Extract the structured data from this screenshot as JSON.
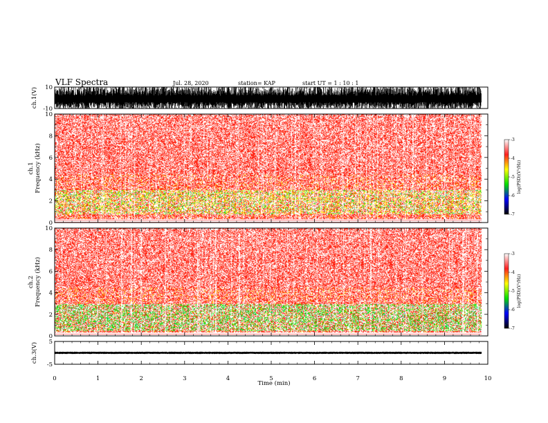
{
  "header": {
    "title": "VLF Spectra",
    "date": "Jul. 28, 2020",
    "station": "station= KAP",
    "start": "start UT =  1 : 10 : 1"
  },
  "colorbar": {
    "label": "log(PSD)(V²/Hz)",
    "ticks": [
      "-3",
      "-4",
      "-5",
      "-6",
      "-7"
    ],
    "colors": [
      "#ffffff",
      "#ff2020",
      "#ffff00",
      "#00e000",
      "#0000ff",
      "#000000"
    ]
  },
  "chart_data": [
    {
      "type": "line",
      "name": "channel-1-waveform",
      "ylabel": "ch.1(V)",
      "ylim": [
        -10,
        10
      ],
      "yticks": [
        "10",
        "-10"
      ],
      "xlim": [
        0,
        10
      ],
      "x_extent_data": 9.85,
      "amplitude_range": [
        -10,
        10
      ],
      "color": "#000000"
    },
    {
      "type": "heatmap",
      "name": "channel-1-spectrogram",
      "ylabel": "ch.1\nFrequency (kHz)",
      "ylim": [
        0,
        10
      ],
      "yticks": [
        "0",
        "2",
        "4",
        "6",
        "8",
        "10"
      ],
      "xlim": [
        0,
        10
      ],
      "x_extent_data": 9.85,
      "z_range": [
        -7,
        -3
      ],
      "dominant_band_khz": [
        0.8,
        3
      ]
    },
    {
      "type": "heatmap",
      "name": "channel-2-spectrogram",
      "ylabel": "ch.2\nFrequency (kHz)",
      "ylim": [
        0,
        10
      ],
      "yticks": [
        "0",
        "2",
        "4",
        "6",
        "8",
        "10"
      ],
      "xlim": [
        0,
        10
      ],
      "x_extent_data": 9.85,
      "z_range": [
        -7,
        -3
      ],
      "dominant_band_khz": [
        0.5,
        3
      ]
    },
    {
      "type": "line",
      "name": "channel-3-waveform",
      "ylabel": "ch.3(V)",
      "ylim": [
        -5,
        5
      ],
      "yticks": [
        "5",
        "-5"
      ],
      "xlim": [
        0,
        10
      ],
      "x_extent_data": 9.85,
      "amplitude_range": [
        -0.5,
        0.5
      ],
      "color": "#000000",
      "xlabel": "Time (min)",
      "xticks": [
        "0",
        "1",
        "2",
        "3",
        "4",
        "5",
        "6",
        "7",
        "8",
        "9",
        "10"
      ]
    }
  ]
}
